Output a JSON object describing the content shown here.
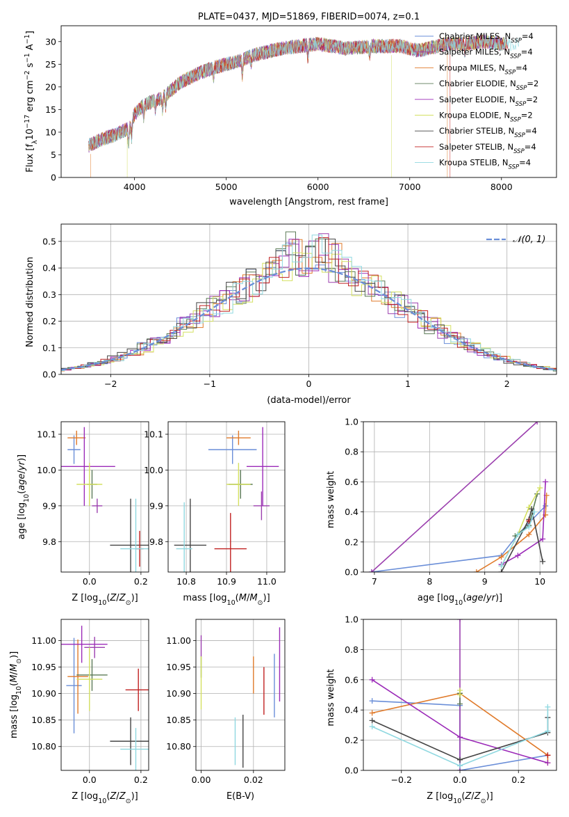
{
  "chart_data": [
    {
      "id": "spectrum",
      "type": "line",
      "title": "PLATE=0437, MJD=51869, FIBERID=0074, z=0.1",
      "xlabel": "wavelength [Angstrom, rest frame]",
      "ylabel_parts": [
        "Flux [f",
        "λ",
        "10",
        "−17",
        " erg cm",
        "−2",
        " s",
        "−1",
        " A",
        "−1",
        "]"
      ],
      "xlim": [
        3200,
        8600
      ],
      "ylim": [
        0,
        33.5
      ],
      "xticks": [
        4000,
        5000,
        6000,
        7000,
        8000
      ],
      "xticklabels": [
        "4000",
        "5000",
        "6000",
        "7000",
        "8000"
      ],
      "yticks": [
        0,
        5,
        10,
        15,
        20,
        25,
        30
      ],
      "yticklabels": [
        "0",
        "5",
        "10",
        "15",
        "20",
        "25",
        "30"
      ],
      "grid": false,
      "legend": "upper right",
      "series": [
        {
          "name": "Chabrier MILES, N",
          "sub": "SSP",
          "suffix": "=4",
          "color": "#6a8ed8"
        },
        {
          "name": "Salpeter MILES, N",
          "sub": "SSP",
          "suffix": "=4",
          "color": "#9b3fae"
        },
        {
          "name": "Kroupa MILES, N",
          "sub": "SSP",
          "suffix": "=4",
          "color": "#e07a2a"
        },
        {
          "name": "Chabrier ELODIE, N",
          "sub": "SSP",
          "suffix": "=2",
          "color": "#5b7a56"
        },
        {
          "name": "Salpeter ELODIE, N",
          "sub": "SSP",
          "suffix": "=2",
          "color": "#9b2ab8"
        },
        {
          "name": "Kroupa ELODIE, N",
          "sub": "SSP",
          "suffix": "=2",
          "color": "#d4e060"
        },
        {
          "name": "Chabrier STELIB, N",
          "sub": "SSP",
          "suffix": "=4",
          "color": "#444444"
        },
        {
          "name": "Salpeter STELIB, N",
          "sub": "SSP",
          "suffix": "=4",
          "color": "#c02020"
        },
        {
          "name": "Kroupa STELIB, N",
          "sub": "SSP",
          "suffix": "=4",
          "color": "#8fd8e0"
        }
      ],
      "continuum_x": [
        3500,
        3650,
        3800,
        3950,
        4000,
        4100,
        4300,
        4500,
        4700,
        4900,
        5100,
        5300,
        5600,
        6000,
        6300,
        6600,
        6900,
        7100,
        7400,
        7600,
        7800,
        8000,
        8200
      ],
      "continuum_y": [
        7,
        8.5,
        9.5,
        11,
        14,
        16,
        17.5,
        21,
        23,
        24.5,
        25.5,
        27,
        28.5,
        29.5,
        28.5,
        29,
        29,
        28,
        29.5,
        29.5,
        30,
        29.5,
        29.5
      ],
      "dips": [
        {
          "x": 3520,
          "y": 0,
          "series": 2
        },
        {
          "x": 3920,
          "y": 0,
          "series": 5
        },
        {
          "x": 6800,
          "y": 0,
          "series": 5
        },
        {
          "x": 7410,
          "y": 0,
          "series": 2
        },
        {
          "x": 7440,
          "y": 0,
          "series": 7
        }
      ]
    },
    {
      "id": "residuals",
      "type": "histogram",
      "xlabel": "(data-model)/error",
      "ylabel": "Normed distribution",
      "xlim": [
        -2.5,
        2.5
      ],
      "ylim": [
        0,
        0.565
      ],
      "xticks": [
        -2,
        -1,
        0,
        1,
        2
      ],
      "xticklabels": [
        "−2",
        "−1",
        "0",
        "1",
        "2"
      ],
      "yticks": [
        0,
        0.1,
        0.2,
        0.3,
        0.4,
        0.5
      ],
      "yticklabels": [
        "0.0",
        "0.1",
        "0.2",
        "0.3",
        "0.4",
        "0.5"
      ],
      "grid": true,
      "legend": "upper right",
      "normal_label": "𝒩(0, 1)",
      "normal_color": "#6a8ed8",
      "bin_width": 0.1
    },
    {
      "id": "age-vs-Z",
      "type": "scatter",
      "xlabel": "Z [log10(Z/Z⊙)]",
      "ylabel": "age  [log10(age/yr)]",
      "xlim": [
        -0.11,
        0.23
      ],
      "ylim": [
        9.715,
        10.135
      ],
      "xticks": [
        0,
        0.2
      ],
      "xticklabels": [
        "0.0",
        "0.2"
      ],
      "yticks": [
        9.8,
        9.9,
        10.0,
        10.1
      ],
      "yticklabels": [
        "9.8",
        "9.9",
        "10.0",
        "10.1"
      ],
      "grid": true,
      "points": [
        {
          "x": -0.06,
          "y": 10.057,
          "xerr": 0.025,
          "yerr": 0.04,
          "series": 0
        },
        {
          "x": 0.03,
          "y": 9.9,
          "xerr": 0.02,
          "yerr": 0.02,
          "series": 1
        },
        {
          "x": -0.05,
          "y": 10.09,
          "xerr": 0.035,
          "yerr": 0.02,
          "series": 2
        },
        {
          "x": 0.01,
          "y": 9.96,
          "xerr": 0.02,
          "yerr": 0.04,
          "series": 3
        },
        {
          "x": -0.02,
          "y": 10.01,
          "xerr": 0.12,
          "yerr": 0.11,
          "series": 4
        },
        {
          "x": 0.0,
          "y": 9.96,
          "xerr": 0.05,
          "yerr": 0.06,
          "series": 5
        },
        {
          "x": 0.16,
          "y": 9.79,
          "xerr": 0.08,
          "yerr": 0.13,
          "series": 6
        },
        {
          "x": 0.195,
          "y": 9.78,
          "xerr": 0.015,
          "yerr": 0.05,
          "series": 7
        },
        {
          "x": 0.18,
          "y": 9.78,
          "xerr": 0.06,
          "yerr": 0.14,
          "series": 8
        }
      ]
    },
    {
      "id": "age-vs-mass",
      "type": "scatter",
      "xlabel": "mass [log10(M/M⊙)]",
      "ylabel": "",
      "xlim": [
        10.755,
        11.045
      ],
      "ylim": [
        9.715,
        10.135
      ],
      "xticks": [
        10.8,
        10.9,
        11.0
      ],
      "xticklabels": [
        "10.8",
        "10.9",
        "11.0"
      ],
      "yticks": [
        9.8,
        9.9,
        10.0,
        10.1
      ],
      "yticklabels": [
        "9.8",
        "9.9",
        "10.0",
        "10.1"
      ],
      "grid": true,
      "points": [
        {
          "x": 10.915,
          "y": 10.057,
          "xerr": 0.06,
          "yerr": 0.04,
          "series": 0
        },
        {
          "x": 10.987,
          "y": 9.9,
          "xerr": 0.02,
          "yerr": 0.04,
          "series": 1
        },
        {
          "x": 10.93,
          "y": 10.09,
          "xerr": 0.03,
          "yerr": 0.02,
          "series": 2
        },
        {
          "x": 10.935,
          "y": 9.96,
          "xerr": 0.03,
          "yerr": 0.04,
          "series": 3
        },
        {
          "x": 10.99,
          "y": 10.01,
          "xerr": 0.04,
          "yerr": 0.11,
          "series": 4
        },
        {
          "x": 10.93,
          "y": 9.96,
          "xerr": 0.03,
          "yerr": 0.06,
          "series": 5
        },
        {
          "x": 10.81,
          "y": 9.79,
          "xerr": 0.04,
          "yerr": 0.13,
          "series": 6
        },
        {
          "x": 10.91,
          "y": 9.78,
          "xerr": 0.04,
          "yerr": 0.1,
          "series": 7
        },
        {
          "x": 10.795,
          "y": 9.78,
          "xerr": 0.02,
          "yerr": 0.13,
          "series": 8
        }
      ]
    },
    {
      "id": "mass-weight-vs-age",
      "type": "line",
      "xlabel": "age  [log10(age/yr)]",
      "ylabel": "mass weight",
      "xlim": [
        6.8,
        10.3
      ],
      "ylim": [
        0,
        1.0
      ],
      "xticks": [
        7,
        8,
        9,
        10
      ],
      "xticklabels": [
        "7",
        "8",
        "9",
        "10"
      ],
      "yticks": [
        0,
        0.2,
        0.4,
        0.6,
        0.8,
        1.0
      ],
      "yticklabels": [
        "0.0",
        "0.2",
        "0.4",
        "0.6",
        "0.8",
        "1.0"
      ],
      "grid": true,
      "series": [
        {
          "series": 0,
          "x": [
            6.95,
            9.3,
            9.6,
            10.1
          ],
          "y": [
            0.0,
            0.11,
            0.25,
            0.44
          ]
        },
        {
          "series": 1,
          "x": [
            6.95,
            9.95
          ],
          "y": [
            0.0,
            1.0
          ]
        },
        {
          "series": 2,
          "x": [
            8.85,
            9.3,
            9.8,
            10.1,
            10.12
          ],
          "y": [
            0.0,
            0.1,
            0.25,
            0.38,
            0.51
          ]
        },
        {
          "series": 3,
          "x": [
            9.55,
            9.8,
            9.95
          ],
          "y": [
            0.24,
            0.31,
            0.52
          ]
        },
        {
          "series": 4,
          "x": [
            9.3,
            9.6,
            10.05,
            10.1
          ],
          "y": [
            0.05,
            0.11,
            0.22,
            0.6
          ]
        },
        {
          "series": 5,
          "x": [
            9.3,
            9.6,
            9.8,
            10.0
          ],
          "y": [
            0.04,
            0.25,
            0.43,
            0.56
          ]
        },
        {
          "series": 6,
          "x": [
            9.3,
            9.8,
            9.85,
            10.05
          ],
          "y": [
            0.0,
            0.35,
            0.42,
            0.07
          ]
        },
        {
          "series": 7,
          "x": [
            9.8
          ],
          "y": [
            0.34
          ]
        },
        {
          "series": 8,
          "x": [
            9.3,
            9.6,
            9.8,
            9.9
          ],
          "y": [
            0.04,
            0.25,
            0.3,
            0.4
          ]
        }
      ]
    },
    {
      "id": "mass-vs-Z",
      "type": "scatter",
      "xlabel": "Z [log10(Z/Z⊙)]",
      "ylabel": "mass [log10(M/M⊙)]",
      "xlim": [
        -0.11,
        0.23
      ],
      "ylim": [
        10.755,
        11.04
      ],
      "xticks": [
        0,
        0.2
      ],
      "xticklabels": [
        "0.0",
        "0.2"
      ],
      "yticks": [
        10.8,
        10.85,
        10.9,
        10.95,
        11.0
      ],
      "yticklabels": [
        "10.80",
        "10.85",
        "10.90",
        "10.95",
        "11.00"
      ],
      "grid": true,
      "points": [
        {
          "x": -0.06,
          "y": 10.915,
          "xerr": 0.03,
          "yerr": 0.09,
          "series": 0
        },
        {
          "x": 0.02,
          "y": 10.987,
          "xerr": 0.04,
          "yerr": 0.02,
          "series": 1
        },
        {
          "x": -0.045,
          "y": 10.932,
          "xerr": 0.04,
          "yerr": 0.07,
          "series": 2
        },
        {
          "x": 0.01,
          "y": 10.935,
          "xerr": 0.06,
          "yerr": 0.03,
          "series": 3
        },
        {
          "x": -0.03,
          "y": 10.993,
          "xerr": 0.1,
          "yerr": 0.035,
          "series": 4
        },
        {
          "x": 0.0,
          "y": 10.927,
          "xerr": 0.05,
          "yerr": 0.06,
          "series": 5
        },
        {
          "x": 0.16,
          "y": 10.81,
          "xerr": 0.08,
          "yerr": 0.045,
          "series": 6
        },
        {
          "x": 0.19,
          "y": 10.907,
          "xerr": 0.05,
          "yerr": 0.04,
          "series": 7
        },
        {
          "x": 0.18,
          "y": 10.795,
          "xerr": 0.06,
          "yerr": 0.04,
          "series": 8
        }
      ]
    },
    {
      "id": "mass-vs-ebv",
      "type": "scatter",
      "xlabel": "E(B-V)",
      "ylabel": "",
      "xlim": [
        -0.002,
        0.032
      ],
      "ylim": [
        10.755,
        11.04
      ],
      "xticks": [
        0,
        0.02
      ],
      "xticklabels": [
        "0.00",
        "0.02"
      ],
      "yticks": [
        10.8,
        10.85,
        10.9,
        10.95,
        11.0
      ],
      "yticklabels": [
        "10.80",
        "10.85",
        "10.90",
        "10.95",
        "11.00"
      ],
      "grid": true,
      "points": [
        {
          "x": 0.028,
          "y": 10.915,
          "yerr": 0.06,
          "series": 0
        },
        {
          "x": 0.0,
          "y": 10.99,
          "yerr": 0.02,
          "series": 1
        },
        {
          "x": 0.02,
          "y": 10.935,
          "yerr": 0.035,
          "series": 2
        },
        {
          "x": 0.0,
          "y": 10.95,
          "yerr": 0.02,
          "series": 3
        },
        {
          "x": 0.03,
          "y": 10.955,
          "yerr": 0.07,
          "series": 4
        },
        {
          "x": 0.0,
          "y": 10.92,
          "yerr": 0.05,
          "series": 5
        },
        {
          "x": 0.016,
          "y": 10.81,
          "yerr": 0.05,
          "series": 6
        },
        {
          "x": 0.024,
          "y": 10.905,
          "yerr": 0.045,
          "series": 7
        },
        {
          "x": 0.013,
          "y": 10.81,
          "yerr": 0.045,
          "series": 8
        }
      ]
    },
    {
      "id": "mass-weight-vs-Z",
      "type": "line",
      "xlabel": "Z [log10(Z/Z⊙)]",
      "ylabel": "mass weight",
      "xlim": [
        -0.33,
        0.33
      ],
      "ylim": [
        0,
        1.0
      ],
      "xticks": [
        -0.2,
        0,
        0.2
      ],
      "xticklabels": [
        "−0.2",
        "0.0",
        "0.2"
      ],
      "yticks": [
        0,
        0.2,
        0.4,
        0.6,
        0.8,
        1.0
      ],
      "yticklabels": [
        "0.0",
        "0.2",
        "0.4",
        "0.6",
        "0.8",
        "1.0"
      ],
      "grid": true,
      "series": [
        {
          "series": 0,
          "x": [
            -0.3,
            0.0,
            0.0,
            0.3
          ],
          "y": [
            0.46,
            0.43,
            0.0,
            0.1
          ]
        },
        {
          "series": 1,
          "x": [
            0.0,
            0.0
          ],
          "y": [
            0.0,
            1.0
          ]
        },
        {
          "series": 2,
          "x": [
            -0.3,
            0.0,
            0.3,
            0.3
          ],
          "y": [
            0.38,
            0.51,
            0.1,
            0.05
          ]
        },
        {
          "series": 3,
          "x": [
            0.0,
            0.0
          ],
          "y": [
            0.51,
            0.44
          ]
        },
        {
          "series": 4,
          "x": [
            -0.3,
            0.0,
            0.3
          ],
          "y": [
            0.6,
            0.22,
            0.05
          ]
        },
        {
          "series": 5,
          "x": [
            0.0,
            0.0
          ],
          "y": [
            0.53,
            0.5
          ]
        },
        {
          "series": 6,
          "x": [
            -0.3,
            0.0,
            0.3,
            0.3
          ],
          "y": [
            0.33,
            0.07,
            0.25,
            0.35
          ]
        },
        {
          "series": 7,
          "x": [
            0.3
          ],
          "y": [
            0.1
          ]
        },
        {
          "series": 8,
          "x": [
            -0.3,
            0.0,
            0.3,
            0.3
          ],
          "y": [
            0.29,
            0.03,
            0.26,
            0.42
          ]
        }
      ]
    }
  ]
}
